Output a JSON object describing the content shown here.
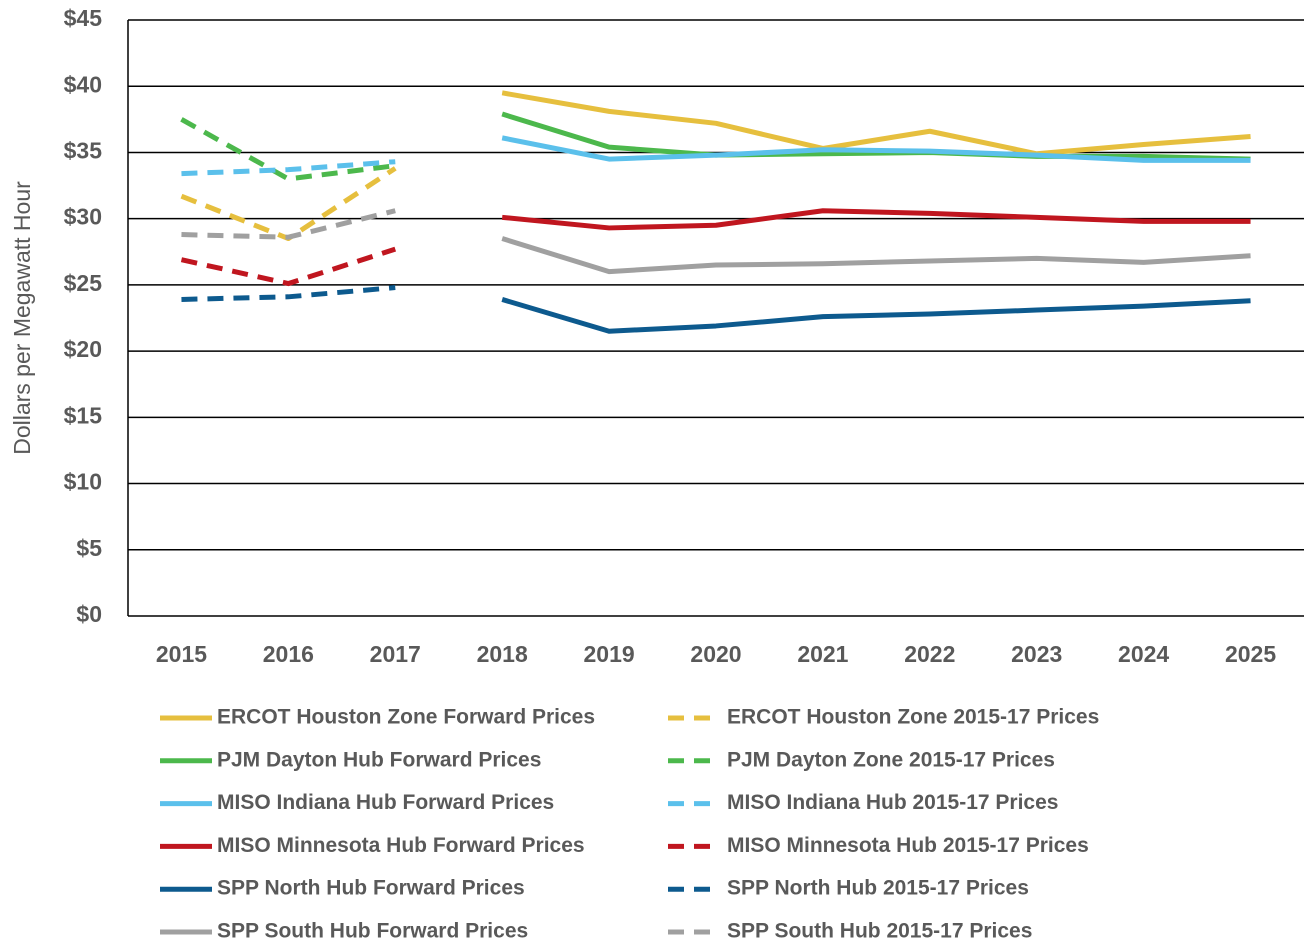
{
  "chart_data": {
    "type": "line",
    "y_label": "Dollars per Megawatt Hour",
    "categories": [
      "2015",
      "2016",
      "2017",
      "2018",
      "2019",
      "2020",
      "2021",
      "2022",
      "2023",
      "2024",
      "2025"
    ],
    "ylim": [
      0,
      45
    ],
    "yticks": [
      {
        "value": 0,
        "label": "$0"
      },
      {
        "value": 5,
        "label": "$5"
      },
      {
        "value": 10,
        "label": "$10"
      },
      {
        "value": 15,
        "label": "$15"
      },
      {
        "value": 20,
        "label": "$20"
      },
      {
        "value": 25,
        "label": "$25"
      },
      {
        "value": 30,
        "label": "$30"
      },
      {
        "value": 35,
        "label": "$35"
      },
      {
        "value": 40,
        "label": "$40"
      },
      {
        "value": 45,
        "label": "$45"
      }
    ],
    "grid": true,
    "legend": "bottom",
    "series": [
      {
        "name": "ERCOT Houston Zone Forward Prices",
        "color": "#e6bf3e",
        "line_style": "solid",
        "values": [
          null,
          null,
          null,
          39.5,
          38.1,
          37.2,
          35.3,
          36.6,
          34.9,
          35.6,
          36.2
        ]
      },
      {
        "name": "ERCOT Houston Zone 2015-17 Prices",
        "color": "#e6bf3e",
        "line_style": "dashed",
        "values": [
          31.7,
          28.5,
          33.8,
          null,
          null,
          null,
          null,
          null,
          null,
          null,
          null
        ]
      },
      {
        "name": "PJM Dayton Hub Forward Prices",
        "color": "#4cb84c",
        "line_style": "solid",
        "values": [
          null,
          null,
          null,
          37.9,
          35.4,
          34.8,
          34.9,
          35.0,
          34.7,
          34.7,
          34.5
        ]
      },
      {
        "name": "PJM Dayton Zone 2015-17 Prices",
        "color": "#4cb84c",
        "line_style": "dashed",
        "values": [
          37.5,
          33.0,
          34.0,
          null,
          null,
          null,
          null,
          null,
          null,
          null,
          null
        ]
      },
      {
        "name": "MISO Indiana Hub Forward Prices",
        "color": "#5bc0eb",
        "line_style": "solid",
        "values": [
          null,
          null,
          null,
          36.1,
          34.5,
          34.8,
          35.2,
          35.1,
          34.8,
          34.4,
          34.4
        ]
      },
      {
        "name": "MISO Indiana Hub 2015-17 Prices",
        "color": "#5bc0eb",
        "line_style": "dashed",
        "values": [
          33.4,
          33.7,
          34.3,
          null,
          null,
          null,
          null,
          null,
          null,
          null,
          null
        ]
      },
      {
        "name": "MISO Minnesota Hub Forward Prices",
        "color": "#c0161f",
        "line_style": "solid",
        "values": [
          null,
          null,
          null,
          30.1,
          29.3,
          29.5,
          30.6,
          30.4,
          30.1,
          29.8,
          29.8
        ]
      },
      {
        "name": "MISO Minnesota Hub 2015-17 Prices",
        "color": "#c0161f",
        "line_style": "dashed",
        "values": [
          26.9,
          25.1,
          27.7,
          null,
          null,
          null,
          null,
          null,
          null,
          null,
          null
        ]
      },
      {
        "name": "SPP North Hub Forward Prices",
        "color": "#0d5a8e",
        "line_style": "solid",
        "values": [
          null,
          null,
          null,
          23.9,
          21.5,
          21.9,
          22.6,
          22.8,
          23.1,
          23.4,
          23.8
        ]
      },
      {
        "name": "SPP North Hub 2015-17 Prices",
        "color": "#0d5a8e",
        "line_style": "dashed",
        "values": [
          23.9,
          24.1,
          24.8,
          null,
          null,
          null,
          null,
          null,
          null,
          null,
          null
        ]
      },
      {
        "name": "SPP South Hub Forward Prices",
        "color": "#a0a0a0",
        "line_style": "solid",
        "values": [
          null,
          null,
          null,
          28.5,
          26.0,
          26.5,
          26.6,
          26.8,
          27.0,
          26.7,
          27.2
        ]
      },
      {
        "name": "SPP South Hub 2015-17 Prices",
        "color": "#a0a0a0",
        "line_style": "dashed",
        "values": [
          28.8,
          28.6,
          30.6,
          null,
          null,
          null,
          null,
          null,
          null,
          null,
          null
        ]
      }
    ]
  }
}
